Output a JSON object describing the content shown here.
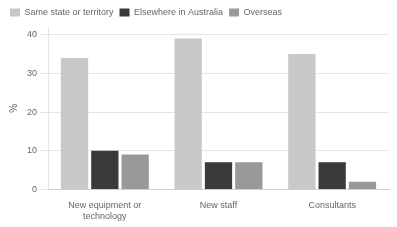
{
  "chart_data": {
    "type": "bar",
    "categories": [
      "New equipment or technology",
      "New staff",
      "Consultants"
    ],
    "series": [
      {
        "name": "Same state or territory",
        "color": "#c8c8c8",
        "values": [
          34,
          39,
          35
        ]
      },
      {
        "name": "Elsewhere in Australia",
        "color": "#3a3a3a",
        "values": [
          10,
          7,
          7
        ]
      },
      {
        "name": "Overseas",
        "color": "#999999",
        "values": [
          9,
          7,
          2
        ]
      }
    ],
    "y_label": "%",
    "ylim": [
      0,
      42
    ],
    "yticks": [
      0,
      10,
      20,
      30,
      40
    ],
    "grid": true,
    "legend": "upper left"
  }
}
